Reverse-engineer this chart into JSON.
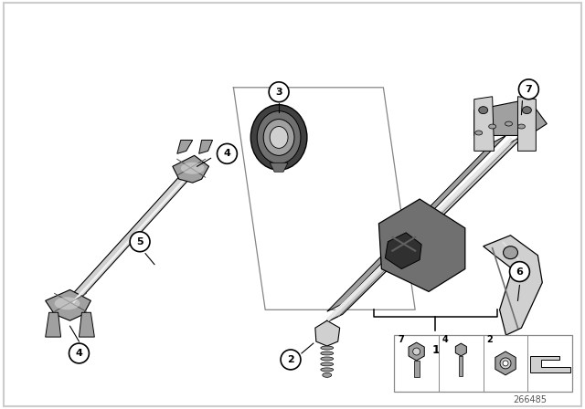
{
  "background_color": "#ffffff",
  "line_color": "#000000",
  "part_color_light": "#d0d0d0",
  "part_color_dark": "#707070",
  "part_color_mid": "#a0a0a0",
  "part_color_very_dark": "#404040",
  "callout_bg": "#ffffff",
  "callout_border": "#000000",
  "diagram_id": "266485",
  "border_color": "#cccccc"
}
